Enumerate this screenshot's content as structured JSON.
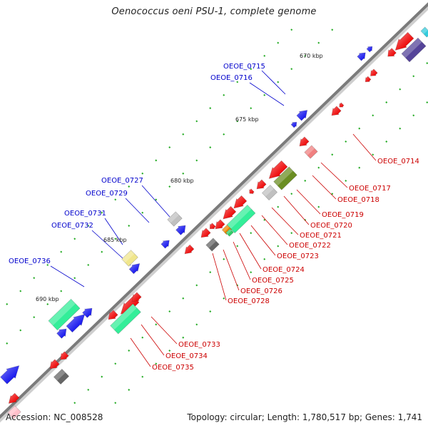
{
  "title": "Oenococcus oeni PSU-1, complete genome",
  "footer": {
    "accession": "Accession: NC_008528",
    "topology": "Topology: circular; Length: 1,780,517 bp; Genes: 1,741"
  },
  "colors": {
    "backbone": "#808080",
    "backbone_edge": "#555555",
    "plus_strand": "#1111ee",
    "minus_strand": "#ee0000",
    "tick": "#22aa22",
    "label_blue": "#0000cc",
    "label_red": "#cc0000"
  },
  "scale_labels": [
    {
      "id": "s670",
      "text": "670 kbp"
    },
    {
      "id": "s675",
      "text": "675 kbp"
    },
    {
      "id": "s680",
      "text": "680 kbp"
    },
    {
      "id": "s685",
      "text": "685 kbp"
    },
    {
      "id": "s690",
      "text": "690 kbp"
    }
  ],
  "gene_labels_plus": [
    {
      "id": "g0715",
      "text": "OEOE_0715"
    },
    {
      "id": "g0716",
      "text": "OEOE_0716"
    },
    {
      "id": "g0727",
      "text": "OEOE_0727"
    },
    {
      "id": "g0729",
      "text": "OEOE_0729"
    },
    {
      "id": "g0731",
      "text": "OEOE_0731"
    },
    {
      "id": "g0732",
      "text": "OEOE_0732"
    },
    {
      "id": "g0736",
      "text": "OEOE_0736"
    }
  ],
  "gene_labels_minus": [
    {
      "id": "g0714",
      "text": "OEOE_0714"
    },
    {
      "id": "g0717",
      "text": "OEOE_0717"
    },
    {
      "id": "g0718",
      "text": "OEOE_0718"
    },
    {
      "id": "g0719",
      "text": "OEOE_0719"
    },
    {
      "id": "g0720",
      "text": "OEOE_0720"
    },
    {
      "id": "g0721",
      "text": "OEOE_0721"
    },
    {
      "id": "g0722",
      "text": "OEOE_0722"
    },
    {
      "id": "g0723",
      "text": "OEOE_0723"
    },
    {
      "id": "g0724",
      "text": "OEOE_0724"
    },
    {
      "id": "g0725",
      "text": "OEOE_0725"
    },
    {
      "id": "g0726",
      "text": "OEOE_0726"
    },
    {
      "id": "g0728",
      "text": "OEOE_0728"
    },
    {
      "id": "g0733",
      "text": "OEOE_0733"
    },
    {
      "id": "g0734",
      "text": "OEOE_0734"
    },
    {
      "id": "g0735",
      "text": "OEOE_0735"
    }
  ]
}
